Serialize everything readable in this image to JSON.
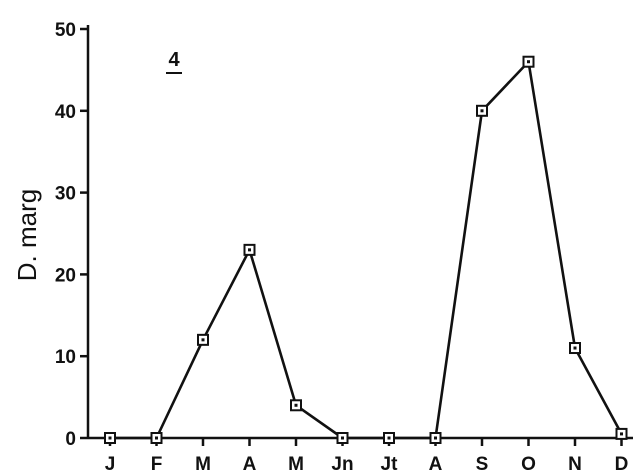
{
  "chart_data": {
    "type": "line",
    "panel_label": "4",
    "ylabel": "D. marg",
    "xlabel": "",
    "categories": [
      "J",
      "F",
      "M",
      "A",
      "M",
      "Jn",
      "Jt",
      "A",
      "S",
      "O",
      "N",
      "D"
    ],
    "series": [
      {
        "values": [
          0,
          0,
          12,
          23,
          4,
          0,
          0,
          0,
          40,
          46,
          11,
          0.5
        ]
      }
    ],
    "ylim": [
      0,
      50
    ],
    "yticks": [
      0,
      10,
      20,
      30,
      40,
      50
    ],
    "grid": false,
    "legend": "none",
    "colors": {
      "line": "#111111",
      "marker": "#111111"
    }
  }
}
